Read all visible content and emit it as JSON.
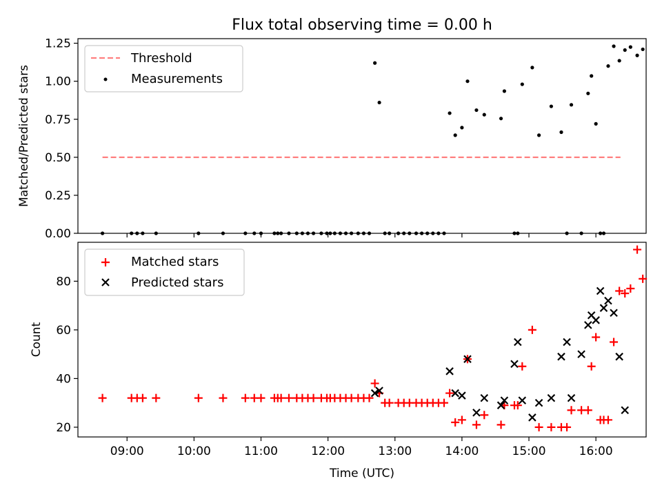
{
  "title": "Flux total observing time = 0.00 h",
  "colors": {
    "threshold": "#ff7f7f",
    "measurement": "#000000",
    "matched": "#ff0000",
    "predicted": "#000000"
  },
  "chart_data": [
    {
      "type": "scatter",
      "ylabel": "Matched/Predicted stars",
      "ylim": [
        0,
        1.28
      ],
      "xlim": [
        "08:16",
        "16:45"
      ],
      "yticks": [
        0.0,
        0.25,
        0.5,
        0.75,
        1.0,
        1.25
      ],
      "ytick_labels": [
        "0.00",
        "0.25",
        "0.50",
        "0.75",
        "1.00",
        "1.25"
      ],
      "legend": {
        "position": "top-left",
        "entries": [
          "Threshold",
          "Measurements"
        ]
      },
      "series": [
        {
          "name": "Threshold",
          "style": "dashed-line",
          "x": [
            "08:38",
            "16:22"
          ],
          "y": [
            0.5,
            0.5
          ]
        },
        {
          "name": "Measurements",
          "style": "dots",
          "x": [
            "08:38",
            "09:04",
            "09:09",
            "09:14",
            "09:26",
            "10:04",
            "10:26",
            "10:46",
            "10:54",
            "11:00",
            "11:12",
            "11:15",
            "11:18",
            "11:25",
            "11:32",
            "11:37",
            "11:42",
            "11:47",
            "11:54",
            "11:59",
            "12:02",
            "12:06",
            "12:11",
            "12:16",
            "12:21",
            "12:27",
            "12:32",
            "12:37",
            "12:42",
            "12:46",
            "12:51",
            "12:55",
            "13:03",
            "13:08",
            "13:13",
            "13:19",
            "13:24",
            "13:29",
            "13:34",
            "13:39",
            "13:44",
            "13:49",
            "13:54",
            "14:00",
            "14:05",
            "14:13",
            "14:20",
            "14:35",
            "14:38",
            "14:47",
            "14:50",
            "14:54",
            "15:03",
            "15:09",
            "15:20",
            "15:29",
            "15:34",
            "15:38",
            "15:47",
            "15:53",
            "15:56",
            "16:00",
            "16:04",
            "16:07",
            "16:11",
            "16:16",
            "16:21",
            "16:26",
            "16:31",
            "16:37",
            "16:42"
          ],
          "y": [
            0,
            0,
            0,
            0,
            0,
            0,
            0,
            0,
            0,
            0,
            0,
            0,
            0,
            0,
            0,
            0,
            0,
            0,
            0,
            0,
            0,
            0,
            0,
            0,
            0,
            0,
            0,
            0,
            1.12,
            0.86,
            0,
            0,
            0,
            0,
            0,
            0,
            0,
            0,
            0,
            0,
            0,
            0.79,
            0.645,
            0.695,
            1.0,
            0.81,
            0.78,
            0.755,
            0.935,
            0,
            0,
            0.98,
            1.09,
            0.645,
            0.835,
            0.665,
            0,
            0.845,
            0,
            0.92,
            1.035,
            0.72,
            0,
            0,
            1.1,
            1.23,
            1.135,
            1.205,
            1.225,
            1.17,
            1.21
          ]
        }
      ]
    },
    {
      "type": "scatter",
      "xlabel": "Time (UTC)",
      "ylabel": "Count",
      "ylim": [
        16,
        96
      ],
      "xlim": [
        "08:16",
        "16:45"
      ],
      "yticks": [
        20,
        40,
        60,
        80
      ],
      "ytick_labels": [
        "20",
        "40",
        "60",
        "80"
      ],
      "xticks": [
        "09:00",
        "10:00",
        "11:00",
        "12:00",
        "13:00",
        "14:00",
        "15:00",
        "16:00"
      ],
      "legend": {
        "position": "top-left",
        "entries": [
          "Matched stars",
          "Predicted stars"
        ]
      },
      "series": [
        {
          "name": "Matched stars",
          "marker": "+",
          "x": [
            "08:38",
            "09:04",
            "09:09",
            "09:14",
            "09:26",
            "10:04",
            "10:26",
            "10:46",
            "10:54",
            "11:00",
            "11:12",
            "11:15",
            "11:18",
            "11:25",
            "11:32",
            "11:37",
            "11:42",
            "11:47",
            "11:54",
            "11:59",
            "12:02",
            "12:06",
            "12:11",
            "12:16",
            "12:21",
            "12:27",
            "12:32",
            "12:37",
            "12:42",
            "12:46",
            "12:51",
            "12:55",
            "13:03",
            "13:08",
            "13:13",
            "13:19",
            "13:24",
            "13:29",
            "13:34",
            "13:39",
            "13:44",
            "13:49",
            "13:54",
            "14:00",
            "14:05",
            "14:13",
            "14:20",
            "14:35",
            "14:38",
            "14:47",
            "14:50",
            "14:54",
            "15:03",
            "15:09",
            "15:20",
            "15:29",
            "15:34",
            "15:38",
            "15:47",
            "15:53",
            "15:56",
            "16:00",
            "16:04",
            "16:07",
            "16:11",
            "16:16",
            "16:21",
            "16:26",
            "16:31",
            "16:37",
            "16:42"
          ],
          "y": [
            32,
            32,
            32,
            32,
            32,
            32,
            32,
            32,
            32,
            32,
            32,
            32,
            32,
            32,
            32,
            32,
            32,
            32,
            32,
            32,
            32,
            32,
            32,
            32,
            32,
            32,
            32,
            32,
            38,
            34,
            30,
            30,
            30,
            30,
            30,
            30,
            30,
            30,
            30,
            30,
            30,
            34,
            22,
            23,
            48,
            21,
            25,
            21,
            29,
            29,
            29,
            45,
            60,
            20,
            20,
            20,
            20,
            27,
            27,
            27,
            45,
            57,
            23,
            23,
            23,
            55,
            76,
            75,
            77,
            93,
            81
          ]
        },
        {
          "name": "Predicted stars",
          "marker": "x",
          "x": [
            "12:42",
            "12:46",
            "13:49",
            "13:54",
            "14:00",
            "14:05",
            "14:13",
            "14:20",
            "14:35",
            "14:38",
            "14:47",
            "14:50",
            "14:54",
            "15:03",
            "15:09",
            "15:20",
            "15:29",
            "15:34",
            "15:38",
            "15:47",
            "15:53",
            "15:56",
            "16:00",
            "16:04",
            "16:07",
            "16:11",
            "16:16",
            "16:21",
            "16:26"
          ],
          "y": [
            34,
            35,
            43,
            34,
            33,
            48,
            26,
            32,
            29,
            31,
            46,
            55,
            31,
            24,
            30,
            32,
            49,
            55,
            32,
            50,
            62,
            66,
            64,
            76,
            69,
            72,
            67,
            49,
            27
          ]
        }
      ]
    }
  ]
}
